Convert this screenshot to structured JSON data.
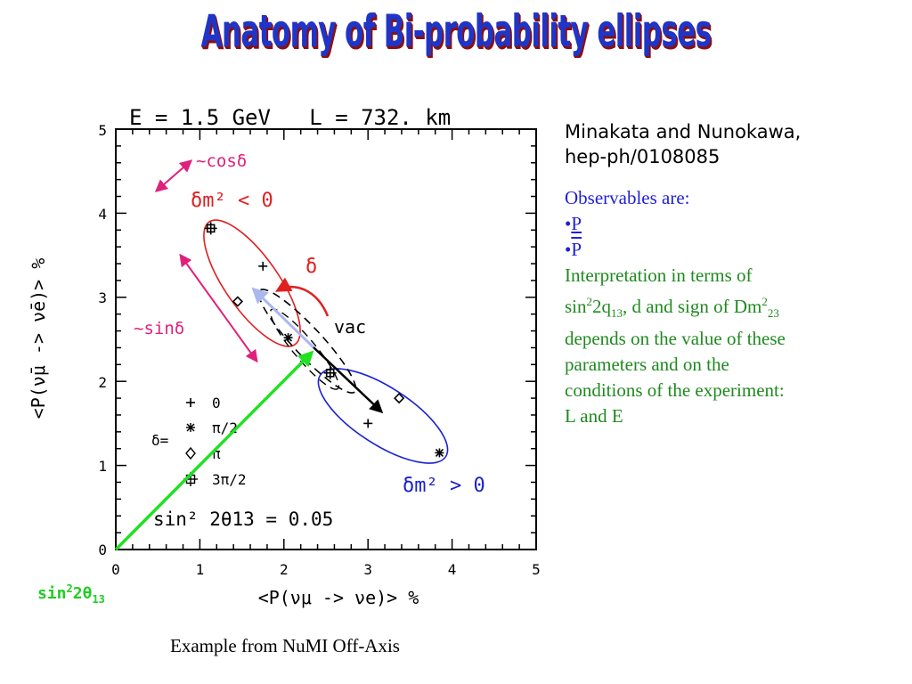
{
  "slide": {
    "title": "Anatomy of Bi-probability ellipses",
    "caption": "Example from NuMI Off-Axis"
  },
  "citation": {
    "line1": "Minakata and Nunokawa,",
    "line2": "hep-ph/0108085"
  },
  "notes": {
    "observables_heading": "Observables are:",
    "bullet_mark": "•",
    "observable_1": "P",
    "observable_2": "P",
    "interp_1": "Interpretation in terms of",
    "interp_2_pre": "sin",
    "interp_2_sup1": "2",
    "interp_2_mid1": "2q",
    "interp_2_sub1": "13",
    "interp_2_mid2": ", d and sign of Dm",
    "interp_2_sup2": "2",
    "interp_2_sub2": "23",
    "interp_3": "depends on the value of these",
    "interp_4": "parameters and on the",
    "interp_5": "conditions of the experiment:",
    "interp_6": "L and E"
  },
  "plot": {
    "header": "E = 1.5 GeV   L = 732. km",
    "x_label": "<P(νμ -> νe)> %",
    "y_label": "<P(ν̄μ -> ν̄e)> %",
    "x_ticks": [
      "0",
      "1",
      "2",
      "3",
      "4",
      "5"
    ],
    "y_ticks": [
      "0",
      "1",
      "2",
      "3",
      "4",
      "5"
    ],
    "legend_prefix": "δ=",
    "legend_entries": [
      "0",
      "π/2",
      "π",
      "3π/2"
    ],
    "mixing_label": "sin² 2θ13 = 0.05",
    "neg_hierarchy_label": "δm² < 0",
    "pos_hierarchy_label": "δm² > 0",
    "vacuum_label": "vac"
  },
  "annotations": {
    "cos_label": "~cosδ",
    "sin_label": "~sinδ",
    "delta_label": "δ",
    "theta_label_pre": "sin",
    "theta_label_sup": "2",
    "theta_label_mid": "2θ",
    "theta_label_sub": "13"
  },
  "colors": {
    "title": "#1f35c8",
    "title_shadow": "#8a0f0f",
    "neg_ellipse": "#e02020",
    "pos_ellipse": "#1a22d0",
    "annotation_magenta": "#e0207a",
    "theta_arrow": "#22e022",
    "notes_blue": "#1f1fd8",
    "notes_green": "#1f8a1f"
  },
  "chart_data": {
    "type": "scatter",
    "xlabel": "<P(νμ -> νe)> %",
    "ylabel": "<P(ν̄μ -> ν̄e)> %",
    "xlim": [
      0,
      5
    ],
    "ylim": [
      0,
      5
    ],
    "grid": false,
    "series": [
      {
        "name": "δm² < 0",
        "points": [
          {
            "delta": "0",
            "x": 1.75,
            "y": 3.37
          },
          {
            "delta": "π/2",
            "x": 2.05,
            "y": 2.52
          },
          {
            "delta": "π",
            "x": 1.45,
            "y": 2.95
          },
          {
            "delta": "3π/2",
            "x": 1.13,
            "y": 3.82
          }
        ]
      },
      {
        "name": "δm² > 0",
        "points": [
          {
            "delta": "0",
            "x": 3.0,
            "y": 1.5
          },
          {
            "delta": "π/2",
            "x": 3.85,
            "y": 1.15
          },
          {
            "delta": "π",
            "x": 3.37,
            "y": 1.8
          },
          {
            "delta": "3π/2",
            "x": 2.55,
            "y": 2.1
          }
        ]
      }
    ]
  }
}
